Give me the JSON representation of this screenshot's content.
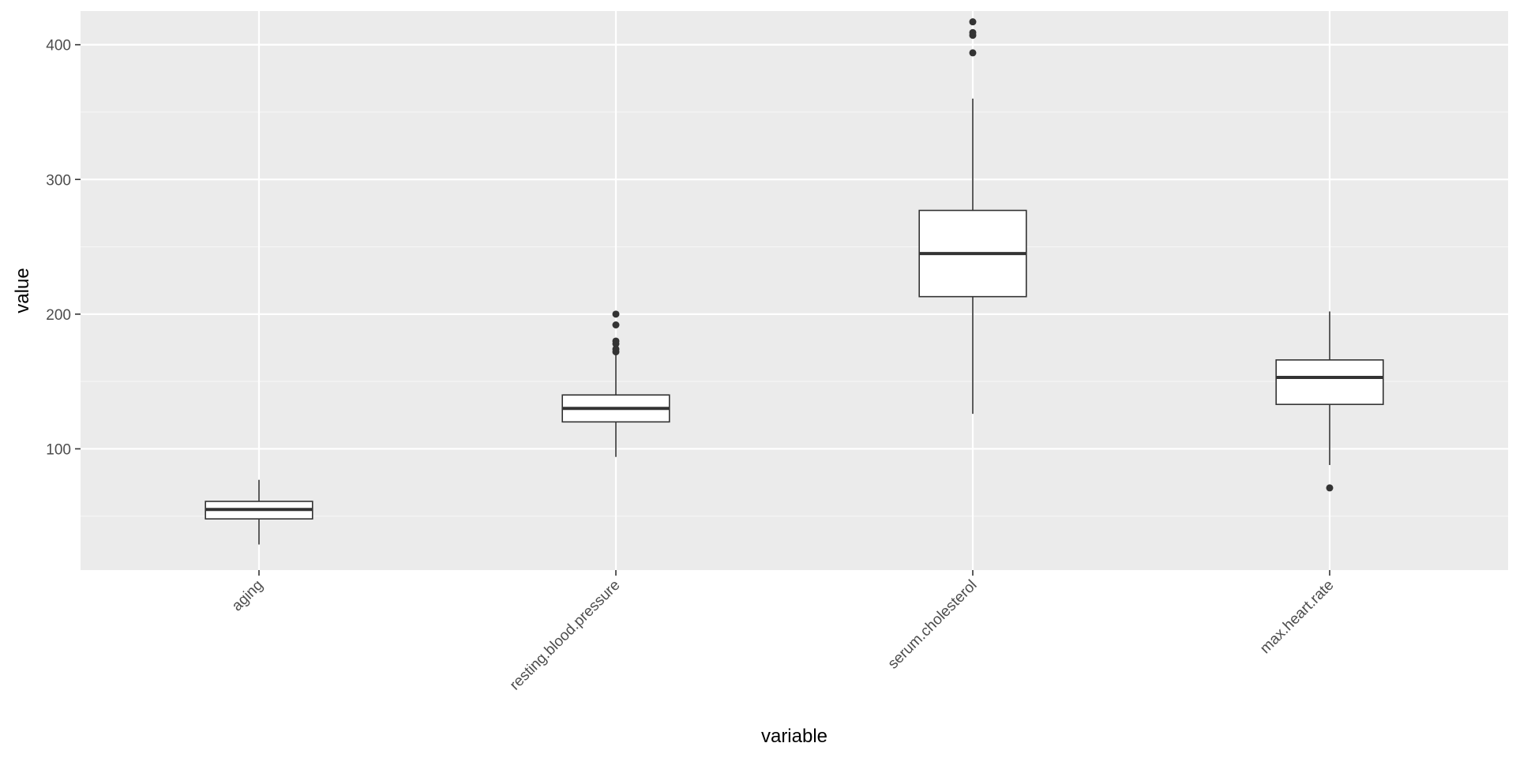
{
  "chart_data": {
    "type": "box",
    "title": "",
    "xlabel": "variable",
    "ylabel": "value",
    "ylim": [
      10,
      425
    ],
    "yticks": [
      100,
      200,
      300,
      400
    ],
    "grid": true,
    "legend": "none",
    "categories": [
      "aging",
      "resting.blood.pressure",
      "serum.cholesterol",
      "max.heart.rate"
    ],
    "boxes": [
      {
        "category": "aging",
        "whisker_low": 29,
        "q1": 48,
        "median": 55,
        "q3": 61,
        "whisker_high": 77,
        "outliers": []
      },
      {
        "category": "resting.blood.pressure",
        "whisker_low": 94,
        "q1": 120,
        "median": 130,
        "q3": 140,
        "whisker_high": 170,
        "outliers": [
          172,
          174,
          178,
          180,
          192,
          200
        ]
      },
      {
        "category": "serum.cholesterol",
        "whisker_low": 126,
        "q1": 213,
        "median": 245,
        "q3": 277,
        "whisker_high": 360,
        "outliers": [
          394,
          407,
          409,
          417
        ]
      },
      {
        "category": "max.heart.rate",
        "whisker_low": 88,
        "q1": 133,
        "median": 153,
        "q3": 166,
        "whisker_high": 202,
        "outliers": [
          71
        ]
      }
    ],
    "colors": {
      "panel": "#ebebeb",
      "grid_major": "#ffffff",
      "grid_minor": "#f5f5f5",
      "box_fill": "#ffffff",
      "box_line": "#333333",
      "outlier": "#333333"
    }
  }
}
